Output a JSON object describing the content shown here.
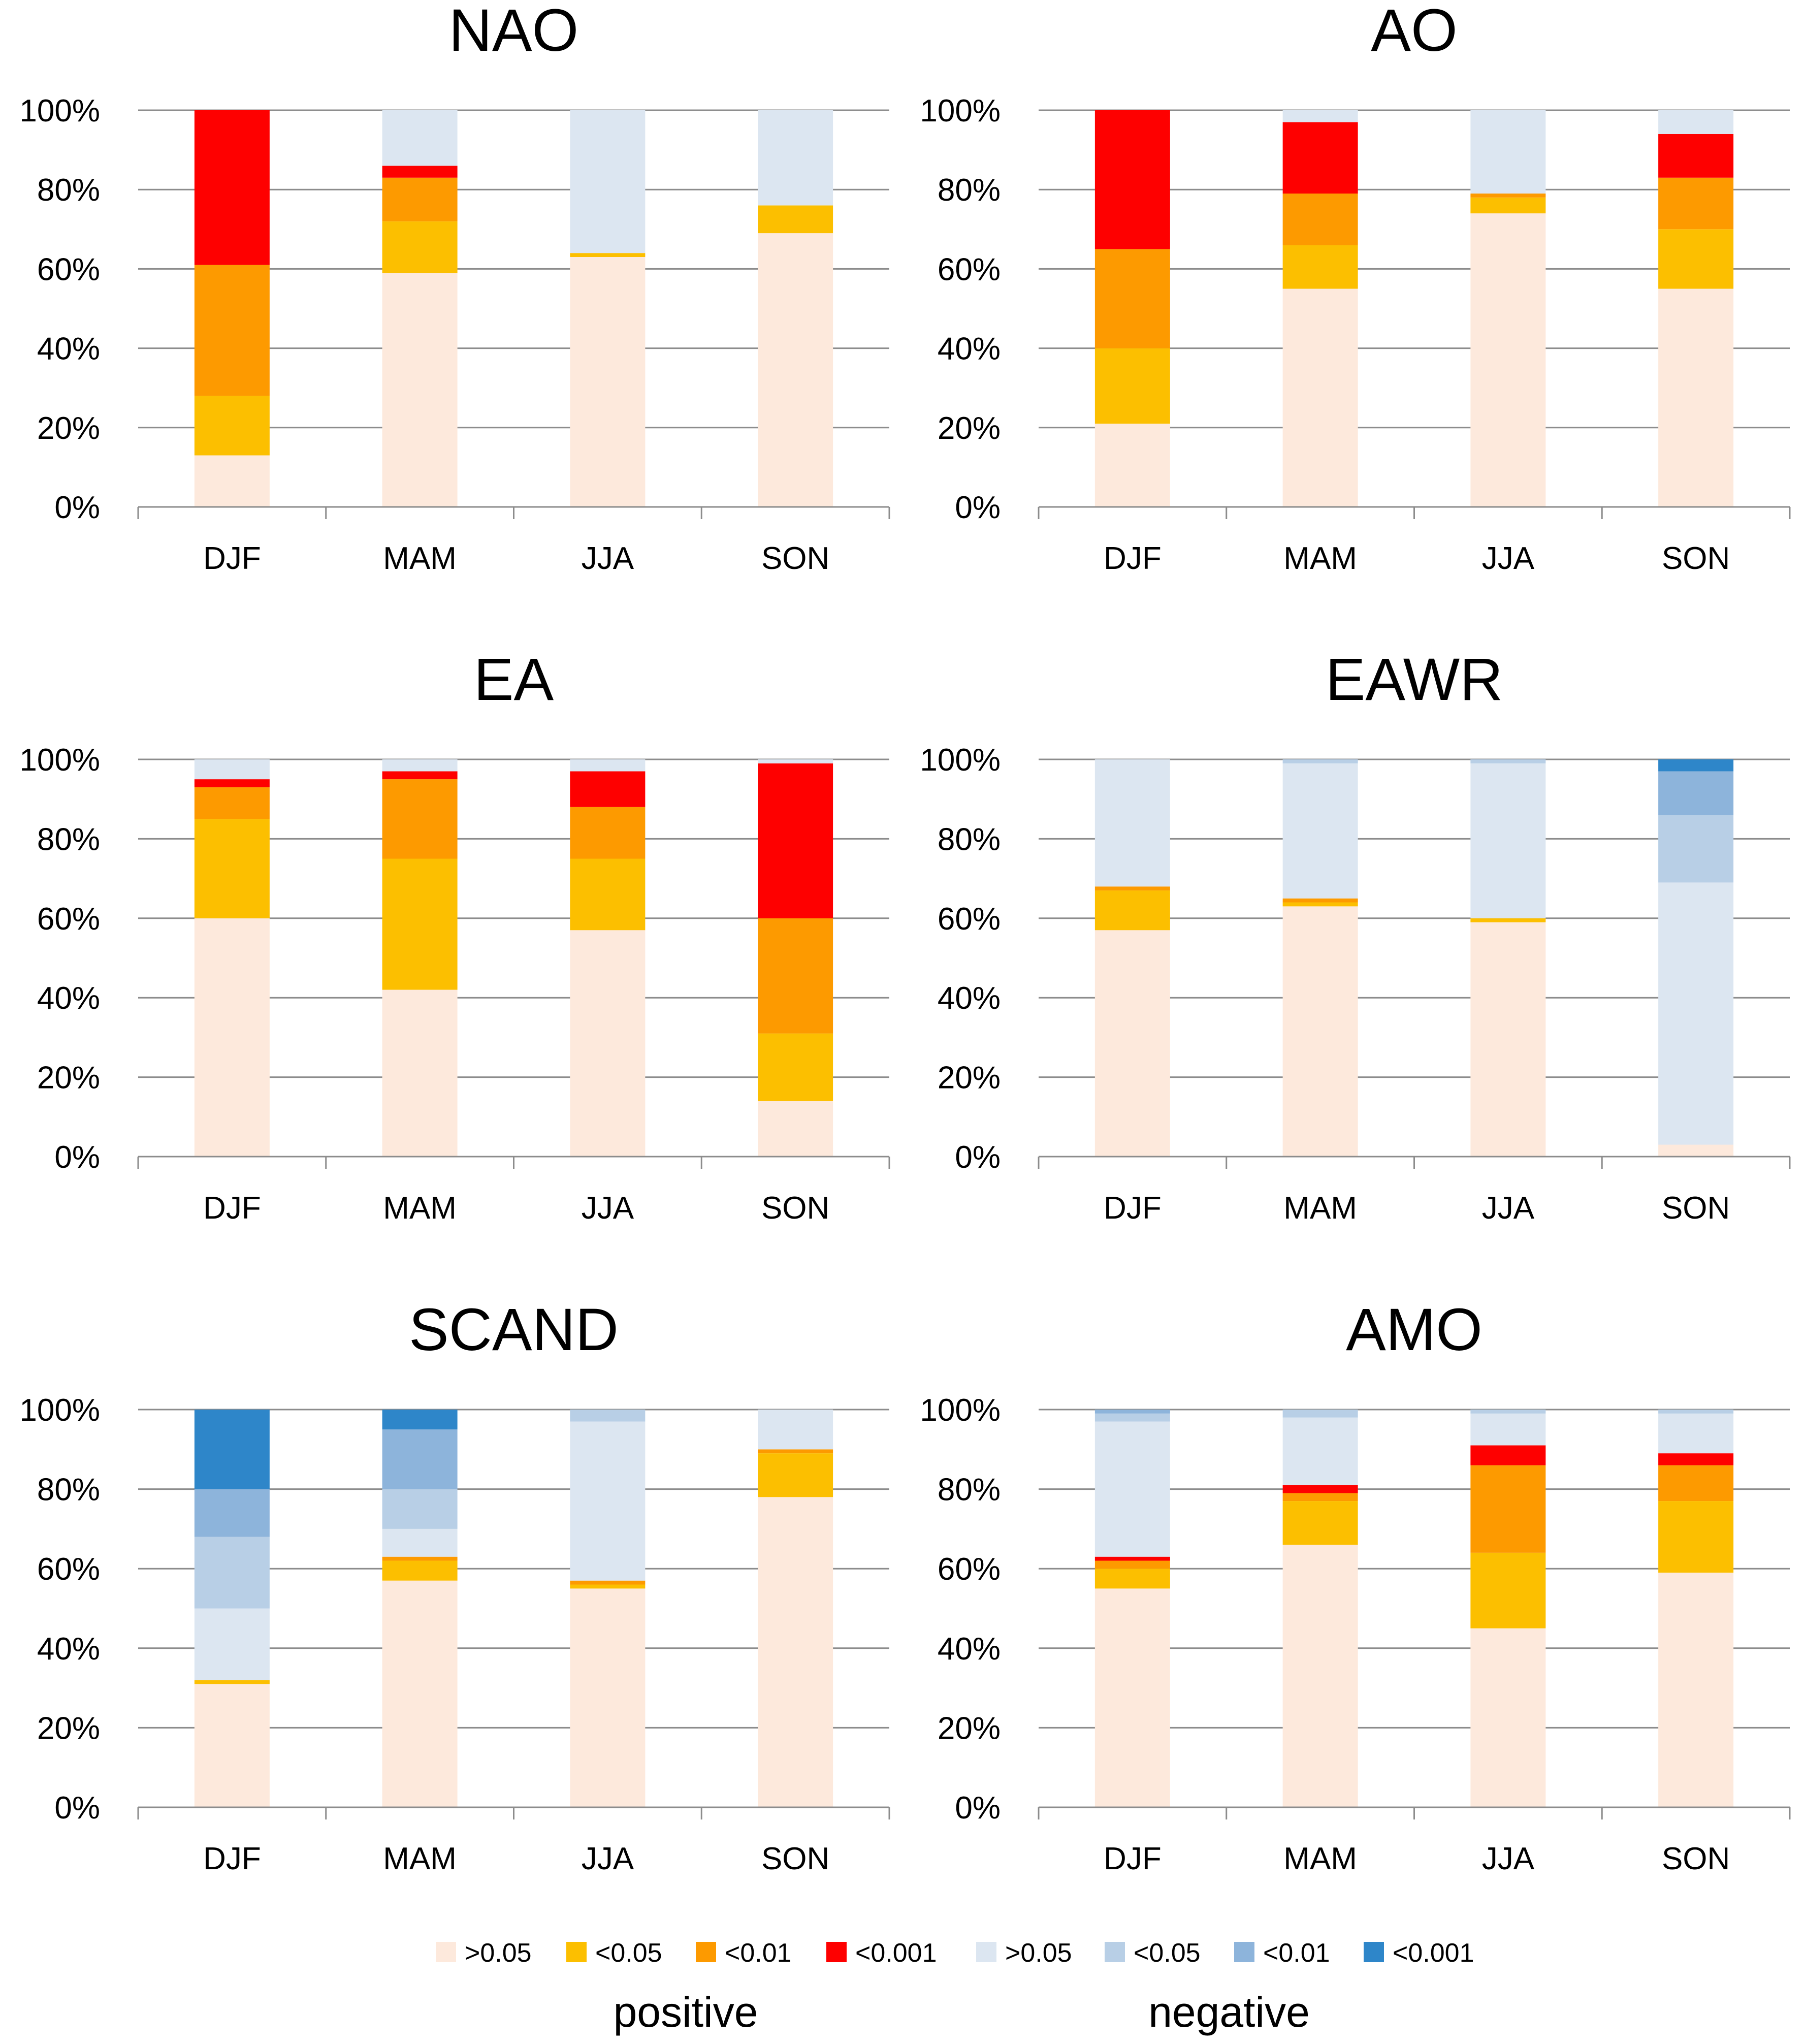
{
  "legend": {
    "items": [
      {
        "label": ">0.05",
        "color": "#fde9dc"
      },
      {
        "label": "<0.05",
        "color": "#fcbf00"
      },
      {
        "label": "<0.01",
        "color": "#fd9a00"
      },
      {
        "label": "<0.001",
        "color": "#fe0000"
      },
      {
        "label": ">0.05",
        "color": "#dce6f1"
      },
      {
        "label": "<0.05",
        "color": "#b8cfe6"
      },
      {
        "label": "<0.01",
        "color": "#8db4db"
      },
      {
        "label": "<0.001",
        "color": "#2e86c9"
      }
    ],
    "positive_label": "positive",
    "negative_label": "negative"
  },
  "chart_data": [
    {
      "type": "bar",
      "stacked": true,
      "title": "NAO",
      "categories": [
        "DJF",
        "MAM",
        "JJA",
        "SON"
      ],
      "yticks": [
        "0%",
        "20%",
        "40%",
        "60%",
        "80%",
        "100%"
      ],
      "ylim": [
        0,
        100
      ],
      "series": [
        {
          "name": "positive >0.05",
          "values": [
            13,
            59,
            63,
            69
          ]
        },
        {
          "name": "positive <0.05",
          "values": [
            15,
            13,
            1,
            7
          ]
        },
        {
          "name": "positive <0.01",
          "values": [
            33,
            11,
            0,
            0
          ]
        },
        {
          "name": "positive <0.001",
          "values": [
            39,
            3,
            0,
            0
          ]
        },
        {
          "name": "negative >0.05",
          "values": [
            0,
            14,
            36,
            24
          ]
        },
        {
          "name": "negative <0.05",
          "values": [
            0,
            0,
            0,
            0
          ]
        },
        {
          "name": "negative <0.01",
          "values": [
            0,
            0,
            0,
            0
          ]
        },
        {
          "name": "negative <0.001",
          "values": [
            0,
            0,
            0,
            0
          ]
        }
      ]
    },
    {
      "type": "bar",
      "stacked": true,
      "title": "AO",
      "categories": [
        "DJF",
        "MAM",
        "JJA",
        "SON"
      ],
      "yticks": [
        "0%",
        "20%",
        "40%",
        "60%",
        "80%",
        "100%"
      ],
      "ylim": [
        0,
        100
      ],
      "series": [
        {
          "name": "positive >0.05",
          "values": [
            21,
            55,
            74,
            55
          ]
        },
        {
          "name": "positive <0.05",
          "values": [
            19,
            11,
            4,
            15
          ]
        },
        {
          "name": "positive <0.01",
          "values": [
            25,
            13,
            1,
            13
          ]
        },
        {
          "name": "positive <0.001",
          "values": [
            35,
            18,
            0,
            11
          ]
        },
        {
          "name": "negative >0.05",
          "values": [
            0,
            3,
            21,
            6
          ]
        },
        {
          "name": "negative <0.05",
          "values": [
            0,
            0,
            0,
            0
          ]
        },
        {
          "name": "negative <0.01",
          "values": [
            0,
            0,
            0,
            0
          ]
        },
        {
          "name": "negative <0.001",
          "values": [
            0,
            0,
            0,
            0
          ]
        }
      ]
    },
    {
      "type": "bar",
      "stacked": true,
      "title": "EA",
      "categories": [
        "DJF",
        "MAM",
        "JJA",
        "SON"
      ],
      "yticks": [
        "0%",
        "20%",
        "40%",
        "60%",
        "80%",
        "100%"
      ],
      "ylim": [
        0,
        100
      ],
      "series": [
        {
          "name": "positive >0.05",
          "values": [
            60,
            42,
            57,
            14
          ]
        },
        {
          "name": "positive <0.05",
          "values": [
            25,
            33,
            18,
            17
          ]
        },
        {
          "name": "positive <0.01",
          "values": [
            8,
            20,
            13,
            29
          ]
        },
        {
          "name": "positive <0.001",
          "values": [
            2,
            2,
            9,
            39
          ]
        },
        {
          "name": "negative >0.05",
          "values": [
            5,
            3,
            3,
            1
          ]
        },
        {
          "name": "negative <0.05",
          "values": [
            0,
            0,
            0,
            0
          ]
        },
        {
          "name": "negative <0.01",
          "values": [
            0,
            0,
            0,
            0
          ]
        },
        {
          "name": "negative <0.001",
          "values": [
            0,
            0,
            0,
            0
          ]
        }
      ]
    },
    {
      "type": "bar",
      "stacked": true,
      "title": "EAWR",
      "categories": [
        "DJF",
        "MAM",
        "JJA",
        "SON"
      ],
      "yticks": [
        "0%",
        "20%",
        "40%",
        "60%",
        "80%",
        "100%"
      ],
      "ylim": [
        0,
        100
      ],
      "series": [
        {
          "name": "positive >0.05",
          "values": [
            57,
            63,
            59,
            3
          ]
        },
        {
          "name": "positive <0.05",
          "values": [
            10,
            1,
            1,
            0
          ]
        },
        {
          "name": "positive <0.01",
          "values": [
            1,
            1,
            0,
            0
          ]
        },
        {
          "name": "positive <0.001",
          "values": [
            0,
            0,
            0,
            0
          ]
        },
        {
          "name": "negative >0.05",
          "values": [
            32,
            34,
            39,
            66
          ]
        },
        {
          "name": "negative <0.05",
          "values": [
            0,
            1,
            1,
            17
          ]
        },
        {
          "name": "negative <0.01",
          "values": [
            0,
            0,
            0,
            11
          ]
        },
        {
          "name": "negative <0.001",
          "values": [
            0,
            0,
            0,
            3
          ]
        }
      ]
    },
    {
      "type": "bar",
      "stacked": true,
      "title": "SCAND",
      "categories": [
        "DJF",
        "MAM",
        "JJA",
        "SON"
      ],
      "yticks": [
        "0%",
        "20%",
        "40%",
        "60%",
        "80%",
        "100%"
      ],
      "ylim": [
        0,
        100
      ],
      "series": [
        {
          "name": "positive >0.05",
          "values": [
            31,
            57,
            55,
            78
          ]
        },
        {
          "name": "positive <0.05",
          "values": [
            1,
            5,
            1,
            11
          ]
        },
        {
          "name": "positive <0.01",
          "values": [
            0,
            1,
            1,
            1
          ]
        },
        {
          "name": "positive <0.001",
          "values": [
            0,
            0,
            0,
            0
          ]
        },
        {
          "name": "negative >0.05",
          "values": [
            18,
            7,
            40,
            10
          ]
        },
        {
          "name": "negative <0.05",
          "values": [
            18,
            10,
            3,
            0
          ]
        },
        {
          "name": "negative <0.01",
          "values": [
            12,
            15,
            0,
            0
          ]
        },
        {
          "name": "negative <0.001",
          "values": [
            20,
            5,
            0,
            0
          ]
        }
      ]
    },
    {
      "type": "bar",
      "stacked": true,
      "title": "AMO",
      "categories": [
        "DJF",
        "MAM",
        "JJA",
        "SON"
      ],
      "yticks": [
        "0%",
        "20%",
        "40%",
        "60%",
        "80%",
        "100%"
      ],
      "ylim": [
        0,
        100
      ],
      "series": [
        {
          "name": "positive >0.05",
          "values": [
            55,
            66,
            45,
            59
          ]
        },
        {
          "name": "positive <0.05",
          "values": [
            5,
            11,
            19,
            18
          ]
        },
        {
          "name": "positive <0.01",
          "values": [
            2,
            2,
            22,
            9
          ]
        },
        {
          "name": "positive <0.001",
          "values": [
            1,
            2,
            5,
            3
          ]
        },
        {
          "name": "negative >0.05",
          "values": [
            34,
            17,
            8,
            10
          ]
        },
        {
          "name": "negative <0.05",
          "values": [
            2,
            2,
            1,
            1
          ]
        },
        {
          "name": "negative <0.01",
          "values": [
            1,
            0,
            0,
            0
          ]
        },
        {
          "name": "negative <0.001",
          "values": [
            0,
            0,
            0,
            0
          ]
        }
      ]
    }
  ]
}
